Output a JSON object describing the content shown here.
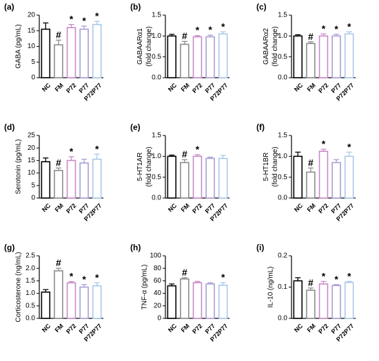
{
  "chart_data": [
    {
      "type": "bar",
      "panel": "(a)",
      "ylabel": [
        "GABA (pg/mL)"
      ],
      "categories": [
        "NC",
        "FM",
        "P72",
        "P77",
        "P72P77"
      ],
      "values": [
        15.5,
        10.5,
        16,
        15.5,
        17
      ],
      "errors": [
        2,
        1.5,
        1,
        1,
        1
      ],
      "annotations": [
        null,
        "#",
        "*",
        "*",
        "*"
      ],
      "colors": [
        "#000000",
        "#8c8c8c",
        "#c88ac8",
        "#a99ed6",
        "#a9c8ea"
      ],
      "ylim": [
        0,
        20
      ],
      "yticks": [
        0,
        5,
        10,
        15,
        20
      ]
    },
    {
      "type": "bar",
      "panel": "(b)",
      "ylabel": [
        "GABAARα1",
        "(fold change)"
      ],
      "categories": [
        "NC",
        "FM",
        "P72",
        "P77",
        "P72P77"
      ],
      "values": [
        1.0,
        0.8,
        0.98,
        0.98,
        1.05
      ],
      "errors": [
        0.04,
        0.07,
        0.03,
        0.04,
        0.05
      ],
      "annotations": [
        null,
        "#",
        "*",
        "*",
        "*"
      ],
      "colors": [
        "#000000",
        "#8c8c8c",
        "#c88ac8",
        "#a99ed6",
        "#a9c8ea"
      ],
      "ylim": [
        0,
        1.5
      ],
      "yticks": [
        {
          "value": 0,
          "label": "0.0"
        },
        0.5,
        {
          "value": 1,
          "label": "1.0"
        },
        1.5
      ]
    },
    {
      "type": "bar",
      "panel": "(c)",
      "ylabel": [
        "GABAARα2",
        "(fold change)"
      ],
      "categories": [
        "NC",
        "FM",
        "P72",
        "P77",
        "P72P77"
      ],
      "values": [
        1.0,
        0.82,
        1.0,
        1.0,
        1.05
      ],
      "errors": [
        0.03,
        0.04,
        0.05,
        0.04,
        0.05
      ],
      "annotations": [
        null,
        "#",
        "*",
        "*",
        "*"
      ],
      "colors": [
        "#000000",
        "#8c8c8c",
        "#c88ac8",
        "#a99ed6",
        "#a9c8ea"
      ],
      "ylim": [
        0,
        1.5
      ],
      "yticks": [
        {
          "value": 0,
          "label": "0.0"
        },
        0.5,
        {
          "value": 1,
          "label": "1.0"
        },
        1.5
      ]
    },
    {
      "type": "bar",
      "panel": "(d)",
      "ylabel": [
        "Serotonin (pg/mL)"
      ],
      "categories": [
        "NC",
        "FM",
        "P72",
        "P77",
        "P72P77"
      ],
      "values": [
        14.5,
        11,
        15,
        14,
        15.5
      ],
      "errors": [
        1.5,
        1,
        1.5,
        1.5,
        2
      ],
      "annotations": [
        null,
        "#",
        "*",
        null,
        "*"
      ],
      "colors": [
        "#000000",
        "#8c8c8c",
        "#c88ac8",
        "#a99ed6",
        "#a9c8ea"
      ],
      "ylim": [
        0,
        25
      ],
      "yticks": [
        0,
        5,
        10,
        15,
        20,
        25
      ]
    },
    {
      "type": "bar",
      "panel": "(e)",
      "ylabel": [
        "5-HT1AR",
        "(fold change)"
      ],
      "categories": [
        "NC",
        "FM",
        "P72",
        "P77",
        "P72P77"
      ],
      "values": [
        1.0,
        0.85,
        1.0,
        0.95,
        0.95
      ],
      "errors": [
        0.03,
        0.07,
        0.04,
        0.03,
        0.07
      ],
      "annotations": [
        null,
        "#",
        "*",
        null,
        null
      ],
      "colors": [
        "#000000",
        "#8c8c8c",
        "#c88ac8",
        "#a99ed6",
        "#a9c8ea"
      ],
      "ylim": [
        0,
        1.5
      ],
      "yticks": [
        {
          "value": 0,
          "label": "0.0"
        },
        0.5,
        {
          "value": 1,
          "label": "1.0"
        },
        1.5
      ]
    },
    {
      "type": "bar",
      "panel": "(f)",
      "ylabel": [
        "5-HT1BR",
        "(fold change)"
      ],
      "categories": [
        "NC",
        "FM",
        "P72",
        "P77",
        "P72P77"
      ],
      "values": [
        1.0,
        0.62,
        1.12,
        0.85,
        1.0
      ],
      "errors": [
        0.1,
        0.1,
        0.05,
        0.07,
        0.1
      ],
      "annotations": [
        null,
        "#",
        "*",
        null,
        "*"
      ],
      "colors": [
        "#000000",
        "#8c8c8c",
        "#c88ac8",
        "#a99ed6",
        "#a9c8ea"
      ],
      "ylim": [
        0,
        1.5
      ],
      "yticks": [
        {
          "value": 0,
          "label": "0.0"
        },
        0.5,
        {
          "value": 1,
          "label": "1.0"
        },
        1.5
      ]
    },
    {
      "type": "bar",
      "panel": "(g)",
      "ylabel": [
        "Corticosterone (ng/mL)"
      ],
      "categories": [
        "NC",
        "FM",
        "P72",
        "P77",
        "P72P77"
      ],
      "values": [
        1.05,
        1.9,
        1.42,
        1.25,
        1.3
      ],
      "errors": [
        0.1,
        0.1,
        0.05,
        0.1,
        0.12
      ],
      "annotations": [
        null,
        "#",
        "*",
        "*",
        "*"
      ],
      "colors": [
        "#000000",
        "#8c8c8c",
        "#c88ac8",
        "#a99ed6",
        "#a9c8ea"
      ],
      "ylim": [
        0,
        2.5
      ],
      "yticks": [
        {
          "value": 0,
          "label": "0.0"
        },
        0.5,
        {
          "value": 1,
          "label": "1.0"
        },
        1.5,
        {
          "value": 2,
          "label": "2.0"
        },
        2.5
      ]
    },
    {
      "type": "bar",
      "panel": "(h)",
      "ylabel": [
        "TNF-α (pg/mL)"
      ],
      "categories": [
        "NC",
        "FM",
        "P72",
        "P77",
        "P72P77"
      ],
      "values": [
        52,
        63,
        57,
        55,
        53
      ],
      "errors": [
        3,
        2,
        2,
        2,
        4
      ],
      "annotations": [
        null,
        "#",
        null,
        null,
        "*"
      ],
      "colors": [
        "#000000",
        "#8c8c8c",
        "#c88ac8",
        "#a99ed6",
        "#a9c8ea"
      ],
      "ylim": [
        0,
        100
      ],
      "yticks": [
        0,
        20,
        40,
        60,
        80,
        100
      ]
    },
    {
      "type": "bar",
      "panel": "(i)",
      "ylabel": [
        "IL-10 (ng/mL)"
      ],
      "categories": [
        "NC",
        "FM",
        "P72",
        "P77",
        "P72P77"
      ],
      "values": [
        0.12,
        0.09,
        0.11,
        0.105,
        0.115
      ],
      "errors": [
        0.01,
        0.007,
        0.008,
        0.003,
        0.003
      ],
      "annotations": [
        null,
        "#",
        "*",
        "*",
        "*"
      ],
      "colors": [
        "#000000",
        "#8c8c8c",
        "#c88ac8",
        "#a99ed6",
        "#a9c8ea"
      ],
      "ylim": [
        0,
        0.2
      ],
      "yticks": [
        {
          "value": 0,
          "label": "0.0"
        },
        0.1,
        0.2
      ]
    }
  ]
}
